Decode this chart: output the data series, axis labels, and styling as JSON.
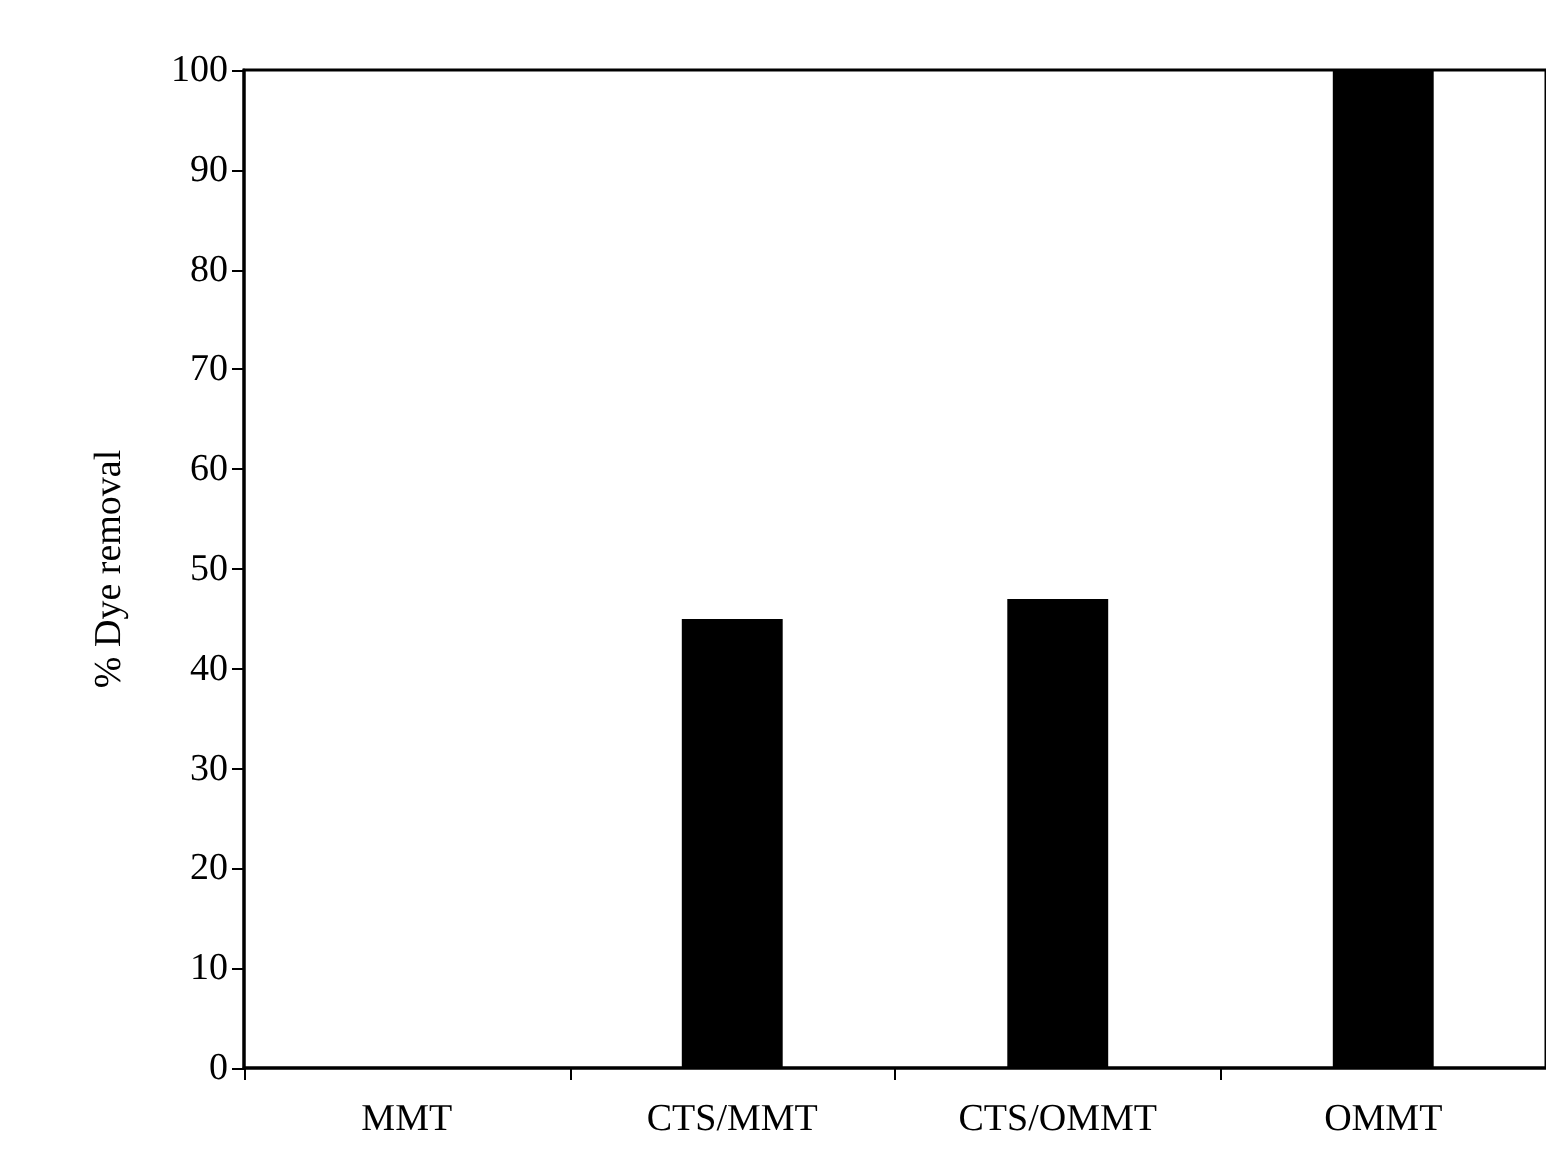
{
  "chart_data": {
    "type": "bar",
    "ylabel": "% Dye removal",
    "categories": [
      "MMT",
      "CTS/MMT",
      "CTS/OMMT",
      "OMMT"
    ],
    "values": [
      0,
      45,
      47,
      100
    ],
    "color": "#000000",
    "ylim": [
      0,
      100
    ],
    "yticks": [
      0,
      10,
      20,
      30,
      40,
      50,
      60,
      70,
      80,
      90,
      100
    ],
    "grid": false
  }
}
